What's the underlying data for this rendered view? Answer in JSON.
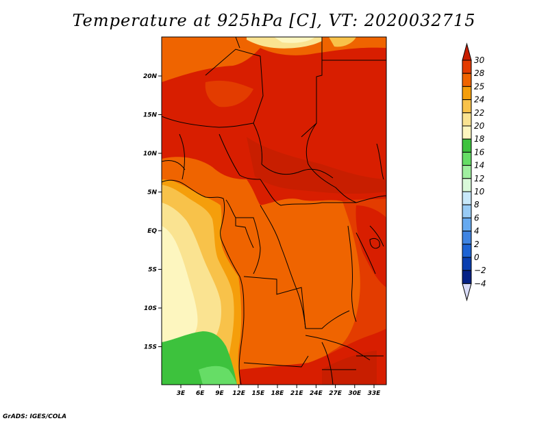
{
  "title": "Temperature at 925hPa [C], VT: 2020032715",
  "credit": "GrADS: IGES/COLA",
  "map": {
    "lat_labels": [
      {
        "label": "20N",
        "lat": 20
      },
      {
        "label": "15N",
        "lat": 15
      },
      {
        "label": "10N",
        "lat": 10
      },
      {
        "label": "5N",
        "lat": 5
      },
      {
        "label": "EQ",
        "lat": 0
      },
      {
        "label": "5S",
        "lat": -5
      },
      {
        "label": "10S",
        "lat": -10
      },
      {
        "label": "15S",
        "lat": -15
      }
    ],
    "lon_labels": [
      {
        "label": "3E",
        "lon": 3
      },
      {
        "label": "6E",
        "lon": 6
      },
      {
        "label": "9E",
        "lon": 9
      },
      {
        "label": "12E",
        "lon": 12
      },
      {
        "label": "15E",
        "lon": 15
      },
      {
        "label": "18E",
        "lon": 18
      },
      {
        "label": "21E",
        "lon": 21
      },
      {
        "label": "24E",
        "lon": 24
      },
      {
        "label": "27E",
        "lon": 27
      },
      {
        "label": "30E",
        "lon": 30
      },
      {
        "label": "33E",
        "lon": 33
      }
    ]
  },
  "colorbar": {
    "levels": [
      "30",
      "28",
      "25",
      "24",
      "22",
      "20",
      "18",
      "16",
      "14",
      "12",
      "10",
      "8",
      "6",
      "4",
      "2",
      "0",
      "-2",
      "-4"
    ],
    "colors": [
      "#c81e00",
      "#e33c00",
      "#ef6400",
      "#f59e0b",
      "#f8c24a",
      "#fae391",
      "#fdf6bf",
      "#3dc23d",
      "#66dd66",
      "#a0efa0",
      "#d9f9d9",
      "#c8e8f9",
      "#98cbf5",
      "#66a9ef",
      "#3f84e2",
      "#1d63d4",
      "#0a3fb0",
      "#042186",
      "#d9dcf8"
    ]
  }
}
